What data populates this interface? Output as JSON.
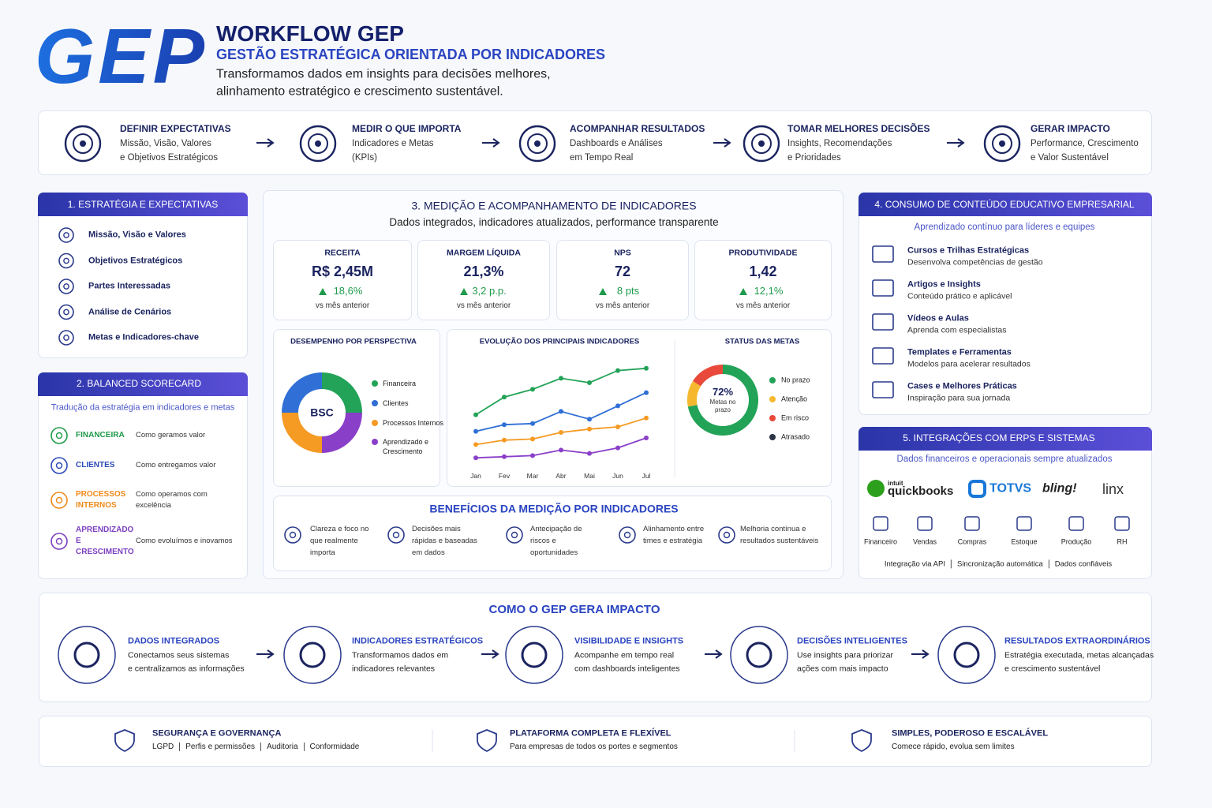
{
  "header": {
    "logo": "GEP",
    "title": "WORKFLOW GEP",
    "subtitle": "GESTÃO ESTRATÉGICA ORIENTADA POR INDICADORES",
    "tagline": [
      "Transformamos dados em insights para decisões melhores,",
      "alinhamento estratégico e crescimento sustentável."
    ]
  },
  "steps": [
    {
      "title": "DEFINIR EXPECTATIVAS",
      "lines": [
        "Missão, Visão, Valores",
        "e Objetivos Estratégicos"
      ]
    },
    {
      "title": "MEDIR O QUE IMPORTA",
      "lines": [
        "Indicadores e Metas",
        "(KPIs)"
      ]
    },
    {
      "title": "ACOMPANHAR RESULTADOS",
      "lines": [
        "Dashboards e Análises",
        "em Tempo Real"
      ]
    },
    {
      "title": "TOMAR MELHORES DECISÕES",
      "lines": [
        "Insights, Recomendações",
        "e Prioridades"
      ]
    },
    {
      "title": "GERAR IMPACTO",
      "lines": [
        "Performance, Crescimento",
        "e Valor Sustentável"
      ]
    }
  ],
  "strategy": {
    "title": "1. ESTRATÉGIA E EXPECTATIVAS",
    "items": [
      "Missão, Visão e Valores",
      "Objetivos Estratégicos",
      "Partes Interessadas",
      "Análise de Cenários",
      "Metas e Indicadores-chave"
    ]
  },
  "scorecard": {
    "title": "2. BALANCED SCORECARD",
    "subtitle": "Tradução da estratégia em indicadores e metas",
    "rows": [
      {
        "name": "FINANCEIRA",
        "desc": "Como geramos valor",
        "color": "#1f9a4a"
      },
      {
        "name": "CLIENTES",
        "desc": "Como entregamos valor",
        "color": "#2a4ab8"
      },
      {
        "name": "PROCESSOS INTERNOS",
        "desc": "Como operamos com excelência",
        "color": "#f08a1a"
      },
      {
        "name": "APRENDIZADO E CRESCIMENTO",
        "desc": "Como evoluímos e inovamos",
        "color": "#7b3fbf"
      }
    ]
  },
  "measurement": {
    "title": "3. MEDIÇÃO E ACOMPANHAMENTO DE INDICADORES",
    "subtitle": "Dados integrados, indicadores atualizados, performance transparente",
    "kpis": [
      {
        "label": "RECEITA",
        "value": "R$ 2,45M",
        "change": "18,6%",
        "note": "vs mês anterior"
      },
      {
        "label": "MARGEM LÍQUIDA",
        "value": "21,3%",
        "change": "3,2 p.p.",
        "note": "vs mês anterior"
      },
      {
        "label": "NPS",
        "value": "72",
        "change": "8 pts",
        "note": "vs mês anterior"
      },
      {
        "label": "PRODUTIVIDADE",
        "value": "1,42",
        "change": "12,1%",
        "note": "vs mês anterior"
      }
    ],
    "perspective": {
      "type": "donut",
      "title": "DESEMPENHO POR PERSPECTIVA",
      "center": "BSC",
      "series": [
        {
          "name": "Financeira",
          "color": "#22a357",
          "value": 25
        },
        {
          "name": "Clientes",
          "color": "#2f6fd6",
          "value": 25
        },
        {
          "name": "Processos Internos",
          "color": "#f59a23",
          "value": 25
        },
        {
          "name": "Aprendizado e Crescimento",
          "color": "#8a3fc9",
          "value": 25
        }
      ]
    },
    "trend": {
      "type": "line",
      "title": "EVOLUÇÃO DOS PRINCIPAIS INDICADORES",
      "categories": [
        "Jan",
        "Fev",
        "Mar",
        "Abr",
        "Mai",
        "Jun",
        "Jul"
      ],
      "ylim": [
        0,
        100
      ],
      "series": [
        {
          "color": "#22a357",
          "values": [
            46,
            62,
            69,
            79,
            75,
            86,
            88
          ]
        },
        {
          "color": "#2f6fd6",
          "values": [
            31,
            37,
            38,
            49,
            42,
            54,
            66
          ]
        },
        {
          "color": "#f59a23",
          "values": [
            19,
            23,
            24,
            30,
            33,
            35,
            43
          ]
        },
        {
          "color": "#8a3fc9",
          "values": [
            7,
            8,
            9,
            14,
            11,
            16,
            25
          ]
        }
      ]
    },
    "status": {
      "type": "donut",
      "title": "STATUS DAS METAS",
      "center": "72%",
      "center_note": "Metas no prazo",
      "series": [
        {
          "name": "No prazo",
          "color": "#22a357",
          "value": 72
        },
        {
          "name": "Atenção",
          "color": "#f5b82e",
          "value": 12
        },
        {
          "name": "Em risco",
          "color": "#e8493a",
          "value": 16
        },
        {
          "name": "Atrasado",
          "color": "#2b3345",
          "value": 0
        }
      ]
    },
    "benefits": {
      "title": "BENEFÍCIOS DA MEDIÇÃO POR INDICADORES",
      "items": [
        "Clareza e foco no que realmente importa",
        "Decisões mais rápidas e baseadas em dados",
        "Antecipação de riscos e oportunidades",
        "Alinhamento entre times e estratégia",
        "Melhoria contínua e resultados sustentáveis"
      ]
    }
  },
  "education": {
    "title": "4. CONSUMO DE CONTEÚDO EDUCATIVO EMPRESARIAL",
    "subtitle": "Aprendizado contínuo para líderes e equipes",
    "items": [
      {
        "title": "Cursos e Trilhas Estratégicas",
        "desc": "Desenvolva competências de gestão"
      },
      {
        "title": "Artigos e Insights",
        "desc": "Conteúdo prático e aplicável"
      },
      {
        "title": "Vídeos e Aulas",
        "desc": "Aprenda com especialistas"
      },
      {
        "title": "Templates e Ferramentas",
        "desc": "Modelos para acelerar resultados"
      },
      {
        "title": "Cases e Melhores Práticas",
        "desc": "Inspiração para sua jornada"
      }
    ]
  },
  "integrations": {
    "title": "5. INTEGRAÇÕES COM ERPS E SISTEMAS",
    "subtitle": "Dados financeiros e operacionais sempre atualizados",
    "brands": [
      "intuit",
      "quickbooks",
      "TOTVS",
      "bling!",
      "linx"
    ],
    "modules": [
      "Financeiro",
      "Vendas",
      "Compras",
      "Estoque",
      "Produção",
      "RH"
    ],
    "footer": [
      "Integração via API",
      "Sincronização automática",
      "Dados confiáveis"
    ]
  },
  "impact": {
    "title": "COMO O GEP GERA IMPACTO",
    "steps": [
      {
        "title": "DADOS INTEGRADOS",
        "lines": [
          "Conectamos seus sistemas",
          "e centralizamos as informações"
        ]
      },
      {
        "title": "INDICADORES ESTRATÉGICOS",
        "lines": [
          "Transformamos dados em",
          "indicadores relevantes"
        ]
      },
      {
        "title": "VISIBILIDADE E INSIGHTS",
        "lines": [
          "Acompanhe em tempo real",
          "com dashboards inteligentes"
        ]
      },
      {
        "title": "DECISÕES INTELIGENTES",
        "lines": [
          "Use insights para priorizar",
          "ações com mais impacto"
        ]
      },
      {
        "title": "RESULTADOS EXTRAORDINÁRIOS",
        "lines": [
          "Estratégia executada, metas alcançadas",
          "e crescimento sustentável"
        ]
      }
    ]
  },
  "footer": [
    {
      "title": "SEGURANÇA E GOVERNANÇA",
      "parts": [
        "LGPD",
        "Perfis e permissões",
        "Auditoria",
        "Conformidade"
      ]
    },
    {
      "title": "PLATAFORMA COMPLETA E FLEXÍVEL",
      "parts": [
        "Para empresas de todos os portes e segmentos"
      ]
    },
    {
      "title": "SIMPLES, PODEROSO E ESCALÁVEL",
      "parts": [
        "Comece rápido, evolua sem limites"
      ]
    }
  ]
}
